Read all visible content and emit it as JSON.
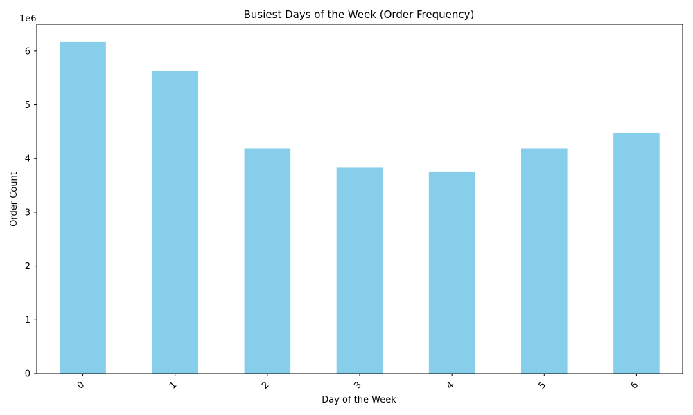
{
  "chart_data": {
    "type": "bar",
    "title": "Busiest Days of the Week (Order Frequency)",
    "xlabel": "Day of the Week",
    "ylabel": "Order Count",
    "categories": [
      "0",
      "1",
      "2",
      "3",
      "4",
      "5",
      "6"
    ],
    "values": [
      6180000,
      5630000,
      4190000,
      3830000,
      3760000,
      4190000,
      4480000
    ],
    "ylim": [
      0,
      6500000
    ],
    "y_ticks": [
      0,
      1000000,
      2000000,
      3000000,
      4000000,
      5000000,
      6000000
    ],
    "y_tick_labels": [
      "0",
      "1",
      "2",
      "3",
      "4",
      "5",
      "6"
    ],
    "y_scale_label": "1e6",
    "bar_color": "#87ceeb",
    "grid": false,
    "x_tick_rotation_deg": 45
  }
}
